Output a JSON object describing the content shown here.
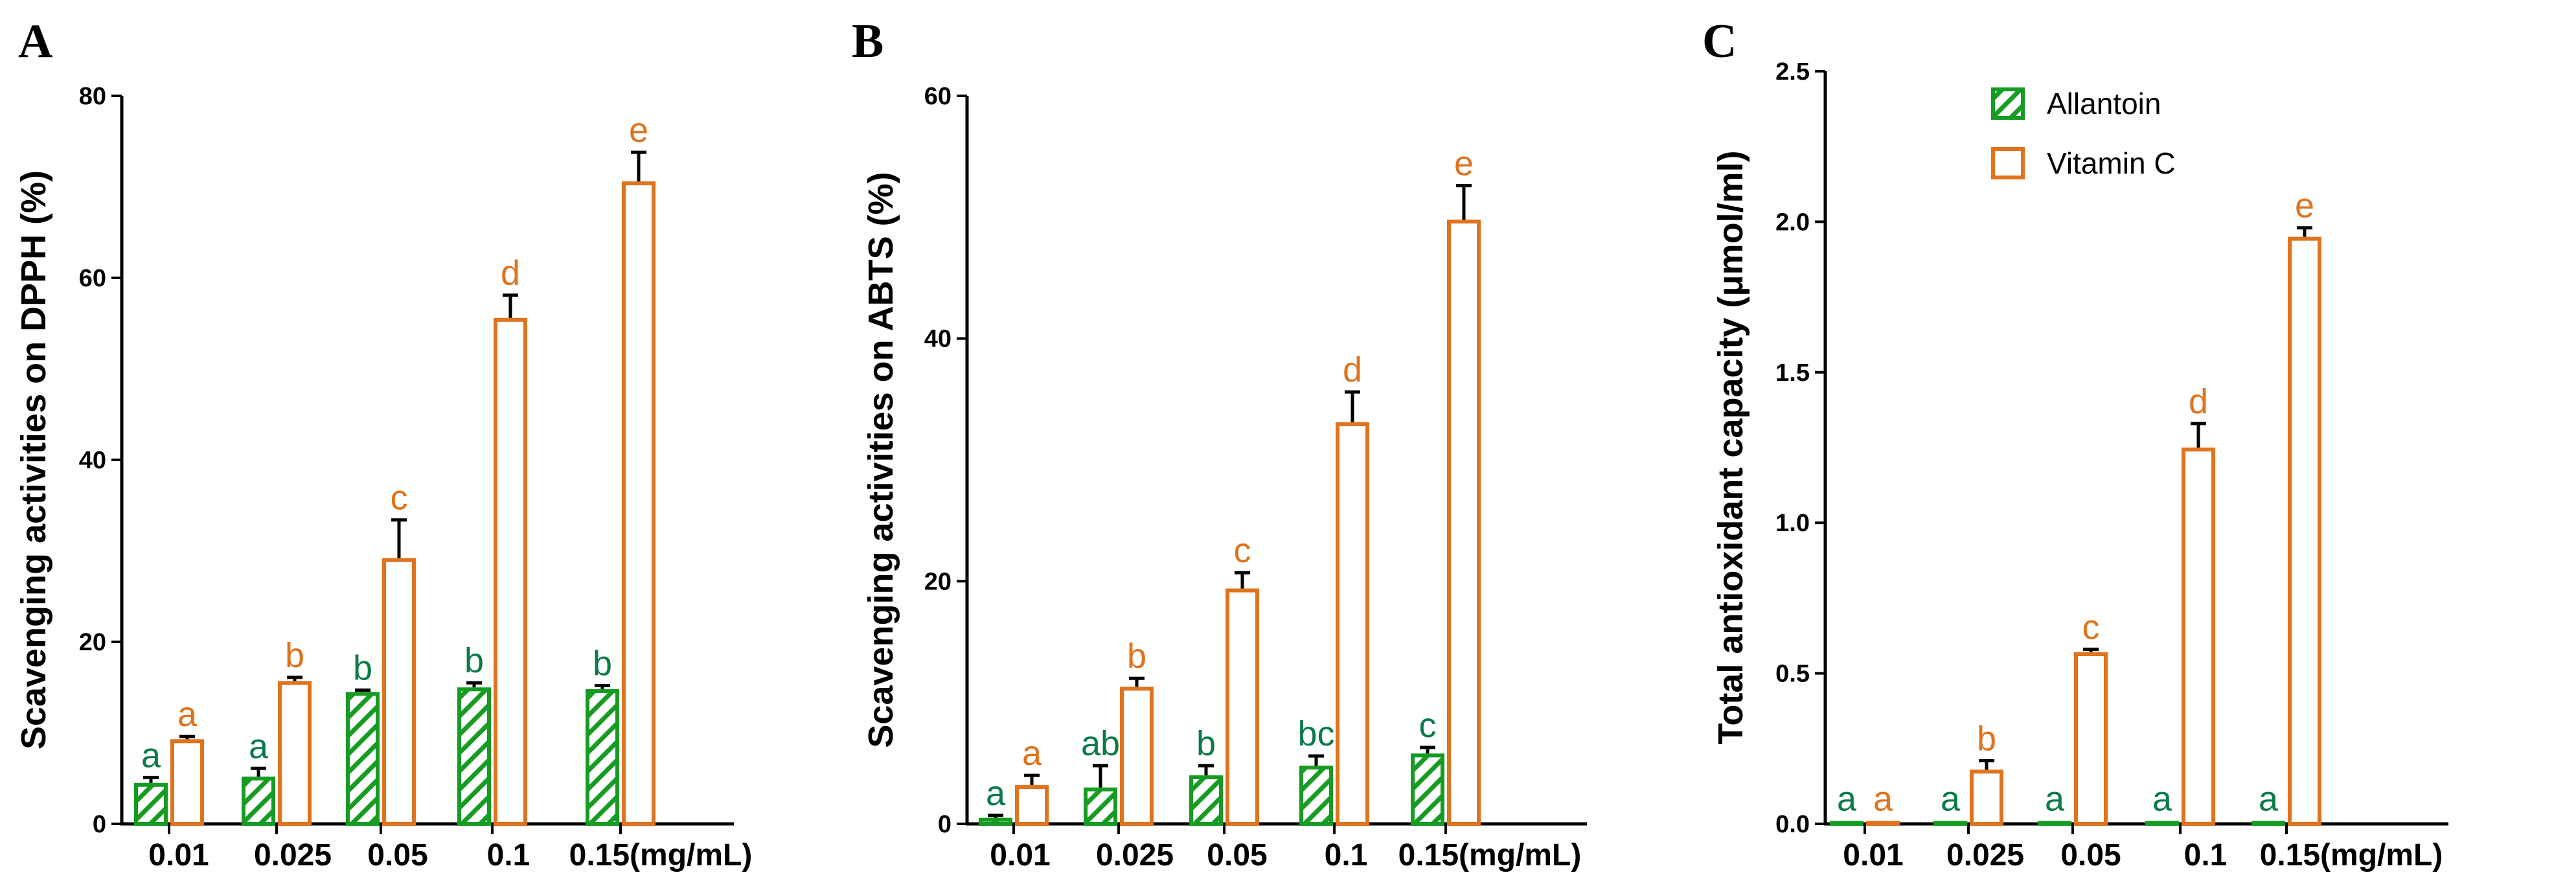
{
  "colors": {
    "allantoin": "#169B23",
    "vitamin_c": "#E0731B",
    "allantoin_label": "#0B7A49",
    "vitamin_c_label": "#E0731B",
    "axis": "#000000"
  },
  "legend": {
    "items": [
      {
        "name": "Allantoin",
        "pattern": "hatched"
      },
      {
        "name": "Vitamin C",
        "pattern": "open"
      }
    ]
  },
  "chart_data": [
    {
      "panel": "A",
      "type": "bar",
      "categories": [
        "0.01",
        "0.025",
        "0.05",
        "0.1",
        "0.15(mg/mL)"
      ],
      "xlabel": "",
      "ylabel": "Scavenging activities on DPPH (%)",
      "ylim": [
        0,
        80
      ],
      "yticks": [
        0,
        20,
        40,
        60,
        80
      ],
      "ytick_labels": [
        "0",
        "20",
        "40",
        "60",
        "80"
      ],
      "series": [
        {
          "name": "Allantoin",
          "values": [
            4.5,
            5.2,
            14.5,
            15.0,
            14.8
          ],
          "errors": [
            0.6,
            0.9,
            0.2,
            0.5,
            0.4
          ],
          "letters": [
            "a",
            "a",
            "b",
            "b",
            "b"
          ]
        },
        {
          "name": "Vitamin C",
          "values": [
            9.3,
            15.7,
            29.2,
            55.6,
            70.6
          ],
          "errors": [
            0.3,
            0.4,
            4.2,
            2.5,
            3.2
          ],
          "letters": [
            "a",
            "b",
            "c",
            "d",
            "e"
          ]
        }
      ]
    },
    {
      "panel": "B",
      "type": "bar",
      "categories": [
        "0.01",
        "0.025",
        "0.05",
        "0.1",
        "0.15(mg/mL)"
      ],
      "xlabel": "",
      "ylabel": "Scavenging activities on ABTS (%)",
      "ylim": [
        0,
        60
      ],
      "yticks": [
        0,
        20,
        40,
        60
      ],
      "ytick_labels": [
        "0",
        "20",
        "40",
        "60"
      ],
      "series": [
        {
          "name": "Allantoin",
          "values": [
            0.5,
            3.0,
            4.0,
            4.8,
            5.8
          ],
          "errors": [
            0.2,
            1.8,
            0.8,
            0.8,
            0.5
          ],
          "letters": [
            "a",
            "ab",
            "b",
            "bc",
            "c"
          ]
        },
        {
          "name": "Vitamin C",
          "values": [
            3.2,
            11.3,
            19.4,
            33.1,
            49.8
          ],
          "errors": [
            0.8,
            0.7,
            1.3,
            2.5,
            2.8
          ],
          "letters": [
            "a",
            "b",
            "c",
            "d",
            "e"
          ]
        }
      ]
    },
    {
      "panel": "C",
      "type": "bar",
      "categories": [
        "0.01",
        "0.025",
        "0.05",
        "0.1",
        "0.15(mg/mL)"
      ],
      "xlabel": "",
      "ylabel": "Total antioxidant capacity (μmol/ml)",
      "ylim": [
        0,
        2.5
      ],
      "yticks": [
        0,
        0.5,
        1.0,
        1.5,
        2.0,
        2.5
      ],
      "ytick_labels": [
        "0.0",
        "0.5",
        "1.0",
        "1.5",
        "2.0",
        "2.5"
      ],
      "series": [
        {
          "name": "Allantoin",
          "values": [
            0.01,
            0.01,
            0.01,
            0.01,
            0.01
          ],
          "errors": [
            0,
            0,
            0,
            0,
            0
          ],
          "letters": [
            "a",
            "a",
            "a",
            "a",
            "a"
          ]
        },
        {
          "name": "Vitamin C",
          "values": [
            0.01,
            0.18,
            0.57,
            1.25,
            1.95
          ],
          "errors": [
            0.0,
            0.03,
            0.01,
            0.08,
            0.03
          ],
          "letters": [
            "a",
            "b",
            "c",
            "d",
            "e"
          ]
        }
      ]
    }
  ]
}
